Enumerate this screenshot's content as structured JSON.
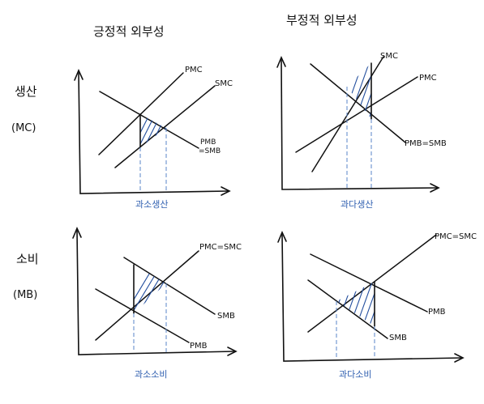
{
  "column_titles": {
    "positive": "긍정적 외부성",
    "negative": "부정적 외부성"
  },
  "row_titles": {
    "production": {
      "label": "생산",
      "sub": "(MC)"
    },
    "consumption": {
      "label": "소비",
      "sub": "(MB)"
    }
  },
  "panels": {
    "positive_production": {
      "curves": [
        "PMC",
        "SMC",
        "PMB\n=SMB"
      ],
      "result": "과소생산"
    },
    "negative_production": {
      "curves": [
        "SMC",
        "PMC",
        "PMB=SMB"
      ],
      "result": "과다생산"
    },
    "positive_consumption": {
      "curves": [
        "PMC=SMC",
        "SMB",
        "PMB"
      ],
      "result": "과소소비"
    },
    "negative_consumption": {
      "curves": [
        "PMC=SMC",
        "PMB",
        "SMB"
      ],
      "result": "과다소비"
    }
  },
  "colors": {
    "ink": "#111111",
    "annotation_blue": "#2f5fb0"
  }
}
